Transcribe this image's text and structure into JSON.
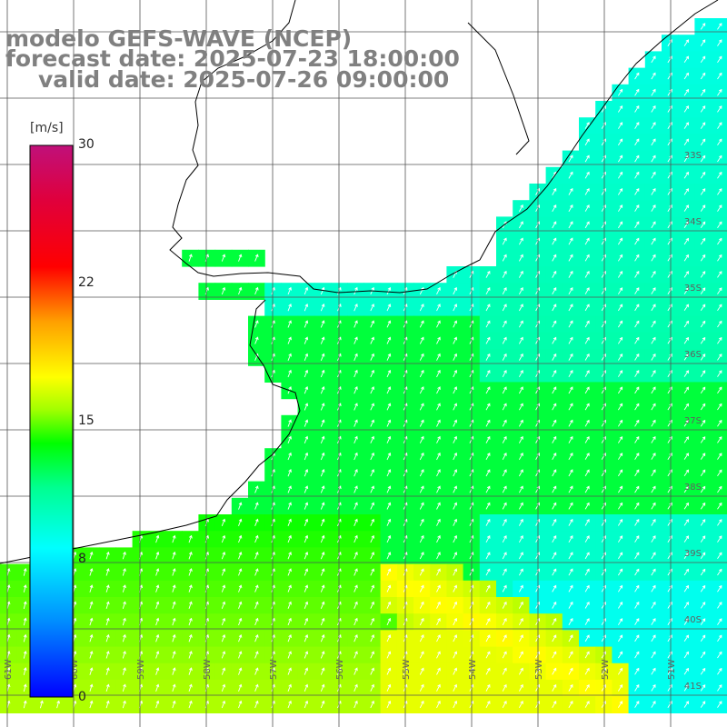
{
  "header": {
    "model": "modelo GEFS-WAVE (NCEP)",
    "forecast": "forecast date: 2025-07-23 18:00:00",
    "valid": "valid date: 2025-07-26 09:00:00"
  },
  "colorbar": {
    "unit": "[m/s]",
    "ticks": [
      "30",
      "22",
      "15",
      "8",
      "0"
    ],
    "min": 0,
    "max": 30
  },
  "axes": {
    "lon_labels": [
      "61W",
      "60W",
      "59W",
      "58W",
      "57W",
      "56W",
      "55W",
      "54W",
      "53W",
      "52W",
      "51W"
    ],
    "lat_labels": [
      "33S",
      "34S",
      "35S",
      "36S",
      "37S",
      "38S",
      "39S",
      "40S",
      "41S"
    ]
  },
  "colors": {
    "land": "#ffffff",
    "grid": "#555555",
    "coast": "#000000",
    "arrows": "#ffffff",
    "header_text": "#808080"
  }
}
